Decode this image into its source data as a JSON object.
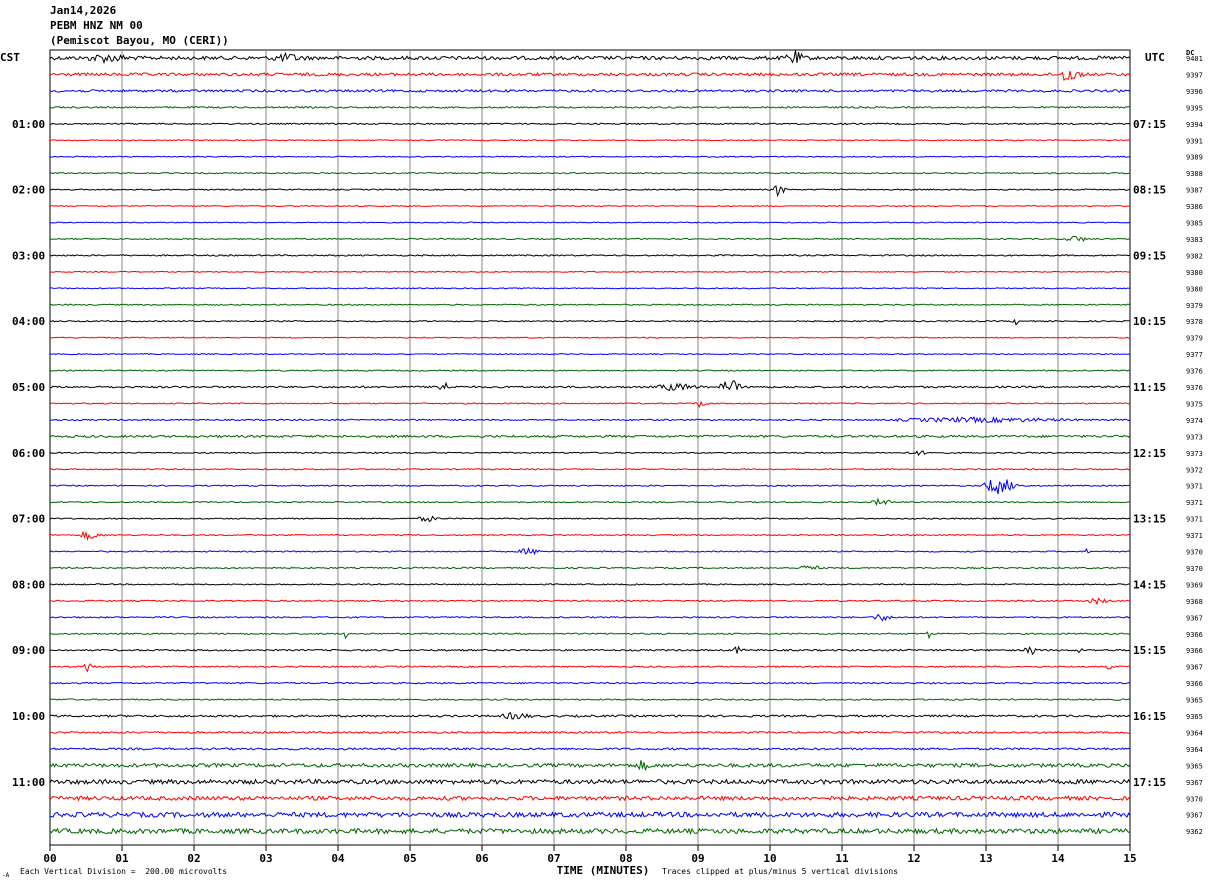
{
  "header": {
    "date": "Jan14,2026",
    "station": "PEBM HNZ NM 00",
    "location": "(Pemiscot Bayou, MO (CERI))"
  },
  "tz_left": "CST",
  "tz_right": "UTC",
  "dc_label": "DC",
  "footer": {
    "scale": "Each Vertical Division =  200.00 microvolts",
    "clip": "Traces clipped at plus/minus 5 vertical divisions",
    "corner_mark": "-A"
  },
  "chart_data": {
    "type": "line",
    "title": "",
    "xlabel": "TIME (MINUTES)",
    "ylabel": "",
    "xlim": [
      0,
      15
    ],
    "x_ticks": [
      "00",
      "01",
      "02",
      "03",
      "04",
      "05",
      "06",
      "07",
      "08",
      "09",
      "10",
      "11",
      "12",
      "13",
      "14",
      "15"
    ],
    "trace_colors": [
      "#000000",
      "#ff0000",
      "#0000ff",
      "#006400"
    ],
    "left_time_labels": [
      {
        "row": 4,
        "label": "01:00"
      },
      {
        "row": 8,
        "label": "02:00"
      },
      {
        "row": 12,
        "label": "03:00"
      },
      {
        "row": 16,
        "label": "04:00"
      },
      {
        "row": 20,
        "label": "05:00"
      },
      {
        "row": 24,
        "label": "06:00"
      },
      {
        "row": 28,
        "label": "07:00"
      },
      {
        "row": 32,
        "label": "08:00"
      },
      {
        "row": 36,
        "label": "09:00"
      },
      {
        "row": 40,
        "label": "10:00"
      },
      {
        "row": 44,
        "label": "11:00"
      }
    ],
    "right_time_labels": [
      {
        "row": 4,
        "label": "07:15"
      },
      {
        "row": 8,
        "label": "08:15"
      },
      {
        "row": 12,
        "label": "09:15"
      },
      {
        "row": 16,
        "label": "10:15"
      },
      {
        "row": 20,
        "label": "11:15"
      },
      {
        "row": 24,
        "label": "12:15"
      },
      {
        "row": 28,
        "label": "13:15"
      },
      {
        "row": 32,
        "label": "14:15"
      },
      {
        "row": 36,
        "label": "15:15"
      },
      {
        "row": 40,
        "label": "16:15"
      },
      {
        "row": 44,
        "label": "17:15"
      }
    ],
    "dc_offsets": [
      "9401",
      "9397",
      "9396",
      "9395",
      "9394",
      "9391",
      "9389",
      "9388",
      "9387",
      "9386",
      "9385",
      "9383",
      "9382",
      "9380",
      "9380",
      "9379",
      "9378",
      "9379",
      "9377",
      "9376",
      "9376",
      "9375",
      "9374",
      "9373",
      "9373",
      "9372",
      "9371",
      "9371",
      "9371",
      "9371",
      "9370",
      "9370",
      "9369",
      "9368",
      "9367",
      "9366",
      "9366",
      "9367",
      "9366",
      "9365",
      "9365",
      "9364",
      "9364",
      "9365",
      "9367",
      "9370",
      "9367",
      "9362"
    ],
    "trace_noise": [
      1.8,
      1.5,
      1.2,
      0.8,
      0.7,
      0.5,
      0.5,
      0.6,
      0.6,
      0.5,
      0.5,
      0.6,
      0.7,
      0.5,
      0.5,
      0.6,
      0.6,
      0.5,
      0.5,
      0.6,
      0.9,
      0.6,
      0.7,
      1.1,
      0.6,
      0.6,
      0.6,
      0.6,
      0.6,
      0.6,
      0.6,
      0.7,
      0.6,
      0.7,
      0.7,
      0.7,
      0.8,
      0.7,
      0.7,
      0.7,
      1.0,
      0.9,
      1.0,
      1.8,
      2.2,
      2.0,
      2.4,
      2.4
    ],
    "events": [
      {
        "row": 0,
        "minute": 10.3,
        "amp": 6,
        "dur": 0.25
      },
      {
        "row": 0,
        "minute": 0.7,
        "amp": 3,
        "dur": 0.6
      },
      {
        "row": 0,
        "minute": 3.2,
        "amp": 3,
        "dur": 0.5
      },
      {
        "row": 1,
        "minute": 14.1,
        "amp": 7,
        "dur": 0.3
      },
      {
        "row": 8,
        "minute": 10.1,
        "amp": 7,
        "dur": 0.15
      },
      {
        "row": 11,
        "minute": 14.2,
        "amp": 3,
        "dur": 0.3
      },
      {
        "row": 16,
        "minute": 13.4,
        "amp": 3,
        "dur": 0.1
      },
      {
        "row": 20,
        "minute": 9.4,
        "amp": 7,
        "dur": 0.3
      },
      {
        "row": 20,
        "minute": 5.4,
        "amp": 4,
        "dur": 0.3
      },
      {
        "row": 20,
        "minute": 8.6,
        "amp": 3,
        "dur": 0.6
      },
      {
        "row": 21,
        "minute": 9.0,
        "amp": 3,
        "dur": 0.2
      },
      {
        "row": 22,
        "minute": 12.5,
        "amp": 2,
        "dur": 2.5
      },
      {
        "row": 24,
        "minute": 12.0,
        "amp": 2,
        "dur": 0.3
      },
      {
        "row": 26,
        "minute": 13.1,
        "amp": 8,
        "dur": 0.5
      },
      {
        "row": 27,
        "minute": 11.5,
        "amp": 3,
        "dur": 0.3
      },
      {
        "row": 28,
        "minute": 5.2,
        "amp": 2.5,
        "dur": 0.3
      },
      {
        "row": 29,
        "minute": 0.5,
        "amp": 4,
        "dur": 0.3
      },
      {
        "row": 30,
        "minute": 6.6,
        "amp": 3,
        "dur": 0.3
      },
      {
        "row": 30,
        "minute": 14.4,
        "amp": 4,
        "dur": 0.05
      },
      {
        "row": 31,
        "minute": 10.5,
        "amp": 2.5,
        "dur": 0.3
      },
      {
        "row": 33,
        "minute": 14.5,
        "amp": 2.5,
        "dur": 0.3
      },
      {
        "row": 34,
        "minute": 11.5,
        "amp": 3,
        "dur": 0.3
      },
      {
        "row": 35,
        "minute": 4.1,
        "amp": 4,
        "dur": 0.05
      },
      {
        "row": 35,
        "minute": 12.2,
        "amp": 4,
        "dur": 0.05
      },
      {
        "row": 36,
        "minute": 9.5,
        "amp": 3,
        "dur": 0.2
      },
      {
        "row": 36,
        "minute": 13.6,
        "amp": 4,
        "dur": 0.2
      },
      {
        "row": 36,
        "minute": 14.3,
        "amp": 4,
        "dur": 0.05
      },
      {
        "row": 37,
        "minute": 0.5,
        "amp": 5,
        "dur": 0.15
      },
      {
        "row": 37,
        "minute": 14.7,
        "amp": 4,
        "dur": 0.05
      },
      {
        "row": 40,
        "minute": 6.4,
        "amp": 3,
        "dur": 0.4
      },
      {
        "row": 43,
        "minute": 8.2,
        "amp": 4,
        "dur": 0.2
      }
    ]
  }
}
